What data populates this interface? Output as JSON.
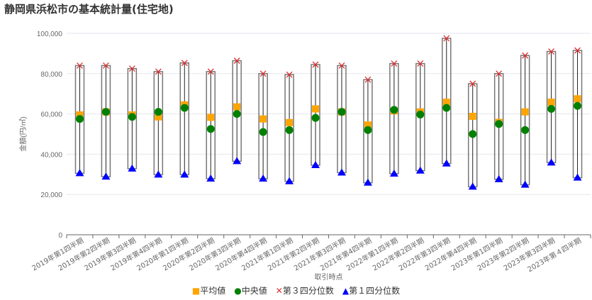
{
  "chart_data": {
    "type": "boxplot",
    "title": "静岡県浜松市の基本統計量(住宅地)",
    "xlabel": "取引時点",
    "ylabel": "金額(円/㎡)",
    "ylim": [
      0,
      100000
    ],
    "yticks": [
      0,
      20000,
      40000,
      60000,
      80000,
      100000
    ],
    "ytick_labels": [
      "0",
      "20,000",
      "40,000",
      "60,000",
      "80,000",
      "100,000"
    ],
    "grid": true,
    "legend_position": "bottom",
    "categories": [
      "2019年第1四半期",
      "2019年第2四半期",
      "2019年第3四半期",
      "2019年第4四半期",
      "2020年第1四半期",
      "2020年第2四半期",
      "2020年第3四半期",
      "2020年第4四半期",
      "2021年第1四半期",
      "2021年第2四半期",
      "2021年第3四半期",
      "2021年第4四半期",
      "2022年第1四半期",
      "2022年第2四半期",
      "2022年第3四半期",
      "2022年第4四半期",
      "2023年第1四半期",
      "2023年第2四半期",
      "2023年第3四半期",
      "2023年第４四半期"
    ],
    "series": [
      {
        "name": "平均値",
        "marker": "square",
        "color": "#FFA500",
        "values": [
          59500,
          61000,
          59500,
          58500,
          64500,
          58300,
          63500,
          57500,
          55700,
          62500,
          61000,
          54500,
          61500,
          61000,
          65800,
          58800,
          55800,
          61000,
          65800,
          67500
        ]
      },
      {
        "name": "中央値",
        "marker": "circle",
        "color": "#008000",
        "values": [
          57500,
          61000,
          58500,
          61000,
          63000,
          52500,
          60000,
          51000,
          52000,
          58000,
          61000,
          52000,
          62000,
          59700,
          63000,
          50000,
          55000,
          52000,
          62500,
          64000
        ]
      },
      {
        "name": "第３四分位数",
        "marker": "x",
        "color": "#E03030",
        "values": [
          84000,
          84000,
          82500,
          81000,
          85300,
          81000,
          86400,
          80000,
          79500,
          84500,
          84000,
          77000,
          85000,
          85000,
          97500,
          75000,
          80000,
          89000,
          91000,
          91500
        ]
      },
      {
        "name": "第１四分位数",
        "marker": "triangle",
        "color": "#0000FF",
        "values": [
          30500,
          28800,
          32800,
          29800,
          29800,
          27800,
          36500,
          27800,
          26500,
          34500,
          30800,
          25800,
          30300,
          31800,
          35300,
          23800,
          27500,
          24800,
          35800,
          28300
        ]
      }
    ]
  }
}
